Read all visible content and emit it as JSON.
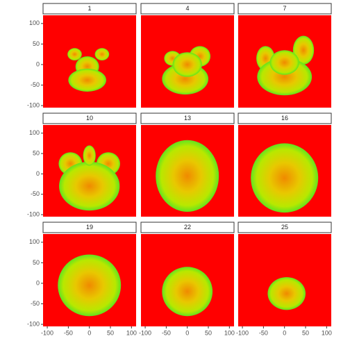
{
  "chart_data": {
    "type": "raster",
    "facets": [
      "1",
      "4",
      "7",
      "10",
      "13",
      "16",
      "19",
      "22",
      "25"
    ],
    "xlim": [
      -110,
      111
    ],
    "ylim": [
      -105,
      120
    ],
    "xticks": [
      -100,
      -50,
      0,
      50,
      100
    ],
    "yticks": [
      -100,
      -50,
      0,
      50,
      100
    ],
    "background": "#ff0000",
    "ncol": 3
  }
}
